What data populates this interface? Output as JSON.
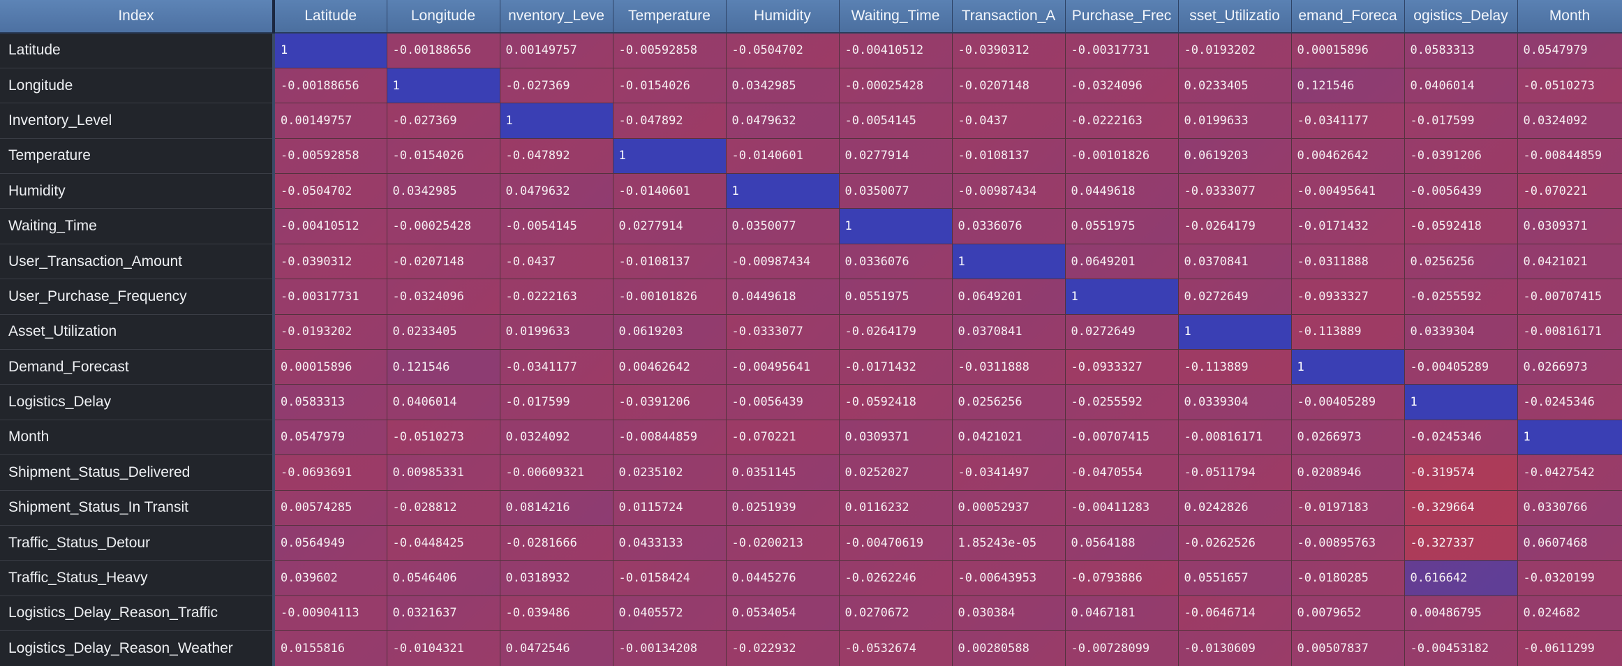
{
  "table": {
    "index_header": "Index",
    "columns": [
      "Latitude",
      "Longitude",
      "nventory_Leve",
      "Temperature",
      "Humidity",
      "Waiting_Time",
      "Transaction_A",
      "Purchase_Frec",
      "sset_Utilizatio",
      "emand_Foreca",
      "ogistics_Delay",
      "Month"
    ],
    "rows": [
      {
        "label": "Latitude",
        "cells": [
          "1",
          "-0.00188656",
          "0.00149757",
          "-0.00592858",
          "-0.0504702",
          "-0.00410512",
          "-0.0390312",
          "-0.00317731",
          "-0.0193202",
          "0.00015896",
          "0.0583313",
          "0.0547979"
        ]
      },
      {
        "label": "Longitude",
        "cells": [
          "-0.00188656",
          "1",
          "-0.027369",
          "-0.0154026",
          "0.0342985",
          "-0.00025428",
          "-0.0207148",
          "-0.0324096",
          "0.0233405",
          "0.121546",
          "0.0406014",
          "-0.0510273"
        ]
      },
      {
        "label": "Inventory_Level",
        "cells": [
          "0.00149757",
          "-0.027369",
          "1",
          "-0.047892",
          "0.0479632",
          "-0.0054145",
          "-0.0437",
          "-0.0222163",
          "0.0199633",
          "-0.0341177",
          "-0.017599",
          "0.0324092"
        ]
      },
      {
        "label": "Temperature",
        "cells": [
          "-0.00592858",
          "-0.0154026",
          "-0.047892",
          "1",
          "-0.0140601",
          "0.0277914",
          "-0.0108137",
          "-0.00101826",
          "0.0619203",
          "0.00462642",
          "-0.0391206",
          "-0.00844859"
        ]
      },
      {
        "label": "Humidity",
        "cells": [
          "-0.0504702",
          "0.0342985",
          "0.0479632",
          "-0.0140601",
          "1",
          "0.0350077",
          "-0.00987434",
          "0.0449618",
          "-0.0333077",
          "-0.00495641",
          "-0.0056439",
          "-0.070221"
        ]
      },
      {
        "label": "Waiting_Time",
        "cells": [
          "-0.00410512",
          "-0.00025428",
          "-0.0054145",
          "0.0277914",
          "0.0350077",
          "1",
          "0.0336076",
          "0.0551975",
          "-0.0264179",
          "-0.0171432",
          "-0.0592418",
          "0.0309371"
        ]
      },
      {
        "label": "User_Transaction_Amount",
        "cells": [
          "-0.0390312",
          "-0.0207148",
          "-0.0437",
          "-0.0108137",
          "-0.00987434",
          "0.0336076",
          "1",
          "0.0649201",
          "0.0370841",
          "-0.0311888",
          "0.0256256",
          "0.0421021"
        ]
      },
      {
        "label": "User_Purchase_Frequency",
        "cells": [
          "-0.00317731",
          "-0.0324096",
          "-0.0222163",
          "-0.00101826",
          "0.0449618",
          "0.0551975",
          "0.0649201",
          "1",
          "0.0272649",
          "-0.0933327",
          "-0.0255592",
          "-0.00707415"
        ]
      },
      {
        "label": "Asset_Utilization",
        "cells": [
          "-0.0193202",
          "0.0233405",
          "0.0199633",
          "0.0619203",
          "-0.0333077",
          "-0.0264179",
          "0.0370841",
          "0.0272649",
          "1",
          "-0.113889",
          "0.0339304",
          "-0.00816171"
        ]
      },
      {
        "label": "Demand_Forecast",
        "cells": [
          "0.00015896",
          "0.121546",
          "-0.0341177",
          "0.00462642",
          "-0.00495641",
          "-0.0171432",
          "-0.0311888",
          "-0.0933327",
          "-0.113889",
          "1",
          "-0.00405289",
          "0.0266973"
        ]
      },
      {
        "label": "Logistics_Delay",
        "cells": [
          "0.0583313",
          "0.0406014",
          "-0.017599",
          "-0.0391206",
          "-0.0056439",
          "-0.0592418",
          "0.0256256",
          "-0.0255592",
          "0.0339304",
          "-0.00405289",
          "1",
          "-0.0245346"
        ]
      },
      {
        "label": "Month",
        "cells": [
          "0.0547979",
          "-0.0510273",
          "0.0324092",
          "-0.00844859",
          "-0.070221",
          "0.0309371",
          "0.0421021",
          "-0.00707415",
          "-0.00816171",
          "0.0266973",
          "-0.0245346",
          "1"
        ]
      },
      {
        "label": "Shipment_Status_Delivered",
        "cells": [
          "-0.0693691",
          "0.00985331",
          "-0.00609321",
          "0.0235102",
          "0.0351145",
          "0.0252027",
          "-0.0341497",
          "-0.0470554",
          "-0.0511794",
          "0.0208946",
          "-0.319574",
          "-0.0427542"
        ]
      },
      {
        "label": "Shipment_Status_In Transit",
        "cells": [
          "0.00574285",
          "-0.028812",
          "0.0814216",
          "0.0115724",
          "0.0251939",
          "0.0116232",
          "0.00052937",
          "-0.00411283",
          "0.0242826",
          "-0.0197183",
          "-0.329664",
          "0.0330766"
        ]
      },
      {
        "label": "Traffic_Status_Detour",
        "cells": [
          "0.0564949",
          "-0.0448425",
          "-0.0281666",
          "0.0433133",
          "-0.0200213",
          "-0.00470619",
          "1.85243e-05",
          "0.0564188",
          "-0.0262526",
          "-0.00895763",
          "-0.327337",
          "0.0607468"
        ]
      },
      {
        "label": "Traffic_Status_Heavy",
        "cells": [
          "0.039602",
          "0.0546406",
          "0.0318932",
          "-0.0158424",
          "0.0445276",
          "-0.0262246",
          "-0.00643953",
          "-0.0793886",
          "0.0551657",
          "-0.0180285",
          "0.616642",
          "-0.0320199"
        ]
      },
      {
        "label": "Logistics_Delay_Reason_Traffic",
        "cells": [
          "-0.00904113",
          "0.0321637",
          "-0.039486",
          "0.0405572",
          "0.0534054",
          "0.0270672",
          "0.030384",
          "0.0467181",
          "-0.0646714",
          "0.0079652",
          "0.00486795",
          "0.024682"
        ]
      },
      {
        "label": "Logistics_Delay_Reason_Weather",
        "cells": [
          "0.0155816",
          "-0.0104321",
          "0.0472546",
          "-0.00134208",
          "-0.022932",
          "-0.0532674",
          "0.00280588",
          "-0.00728099",
          "-0.0130609",
          "0.00507837",
          "-0.00453182",
          "-0.0611299"
        ]
      }
    ]
  },
  "colors": {
    "low": "#b73a44",
    "high": "#3a3fb4",
    "header": "#4e72a3",
    "index_bg": "#22252b"
  }
}
